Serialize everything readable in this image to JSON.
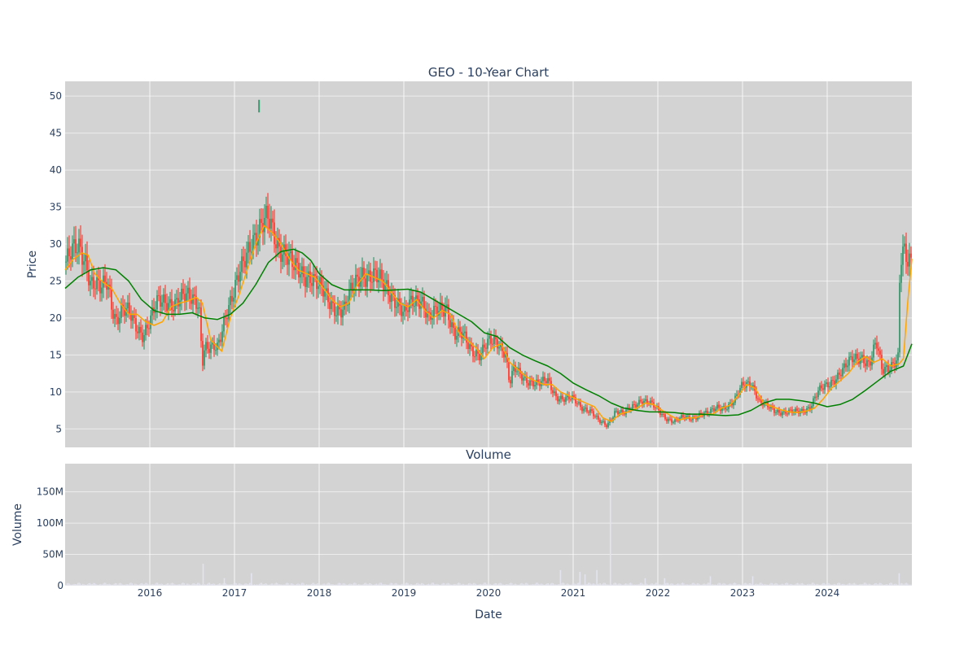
{
  "chart_data": {
    "type": "candlestick",
    "title": "GEO - 10-Year Chart",
    "price_panel": {
      "ylabel": "Price",
      "ylim": [
        2.5,
        52
      ],
      "yticks": [
        5,
        10,
        15,
        20,
        25,
        30,
        35,
        40,
        45,
        50
      ],
      "ytick_labels": [
        "5",
        "10",
        "15",
        "20",
        "25",
        "30",
        "35",
        "40",
        "45",
        "50"
      ],
      "background": "#d3d3d3",
      "grid": true,
      "up_color": "#3d9970",
      "down_color": "#ff4136",
      "series": [
        {
          "kind": "close_approx",
          "x": [
            2015.0,
            2015.08,
            2015.17,
            2015.25,
            2015.3,
            2015.35,
            2015.42,
            2015.5,
            2015.55,
            2015.6,
            2015.67,
            2015.75,
            2015.83,
            2015.92,
            2016.0,
            2016.1,
            2016.2,
            2016.3,
            2016.4,
            2016.5,
            2016.58,
            2016.62,
            2016.65,
            2016.7,
            2016.8,
            2016.9,
            2017.0,
            2017.1,
            2017.2,
            2017.3,
            2017.4,
            2017.5,
            2017.6,
            2017.7,
            2017.8,
            2017.9,
            2018.0,
            2018.1,
            2018.2,
            2018.3,
            2018.4,
            2018.5,
            2018.6,
            2018.7,
            2018.8,
            2018.9,
            2019.0,
            2019.1,
            2019.2,
            2019.3,
            2019.4,
            2019.5,
            2019.6,
            2019.7,
            2019.8,
            2019.9,
            2020.0,
            2020.1,
            2020.2,
            2020.25,
            2020.3,
            2020.4,
            2020.5,
            2020.6,
            2020.7,
            2020.8,
            2020.9,
            2021.0,
            2021.1,
            2021.2,
            2021.3,
            2021.4,
            2021.5,
            2021.6,
            2021.7,
            2021.8,
            2021.9,
            2022.0,
            2022.1,
            2022.2,
            2022.3,
            2022.4,
            2022.5,
            2022.6,
            2022.7,
            2022.8,
            2022.9,
            2023.0,
            2023.1,
            2023.2,
            2023.3,
            2023.4,
            2023.5,
            2023.6,
            2023.7,
            2023.8,
            2023.9,
            2024.0,
            2024.1,
            2024.2,
            2024.3,
            2024.4,
            2024.5,
            2024.58,
            2024.65,
            2024.7,
            2024.8,
            2024.84,
            2024.86,
            2024.9,
            2024.95,
            2025.0
          ],
          "close": [
            27.5,
            28.5,
            29.5,
            28.0,
            25.0,
            24.5,
            23.5,
            25.0,
            22.0,
            20.0,
            21.0,
            20.5,
            19.0,
            18.0,
            19.5,
            22.0,
            22.5,
            22.0,
            22.5,
            23.0,
            22.5,
            14.0,
            16.0,
            15.5,
            16.0,
            21.0,
            23.5,
            27.0,
            31.0,
            32.0,
            33.0,
            30.5,
            29.0,
            26.5,
            26.0,
            26.0,
            24.0,
            22.5,
            21.5,
            21.0,
            24.0,
            26.5,
            25.5,
            25.0,
            24.5,
            22.5,
            20.0,
            22.5,
            23.0,
            19.5,
            21.0,
            22.0,
            17.5,
            17.5,
            16.0,
            15.0,
            16.5,
            17.0,
            15.5,
            11.0,
            13.0,
            12.0,
            11.5,
            11.0,
            11.5,
            9.5,
            9.0,
            9.0,
            8.0,
            7.5,
            6.0,
            5.5,
            7.5,
            7.0,
            8.0,
            9.0,
            8.5,
            7.5,
            6.5,
            6.0,
            6.5,
            6.5,
            7.0,
            7.0,
            8.0,
            8.0,
            8.5,
            11.0,
            11.5,
            8.5,
            8.0,
            7.5,
            7.2,
            7.2,
            7.5,
            8.0,
            10.0,
            11.0,
            12.0,
            13.0,
            14.5,
            15.0,
            13.5,
            16.5,
            13.0,
            13.5,
            14.0,
            14.5,
            27.0,
            28.5,
            27.5,
            28.0
          ]
        },
        {
          "name": "",
          "kind": "short_ma",
          "color": "#ffa500",
          "x": [
            2015.0,
            2015.1,
            2015.2,
            2015.27,
            2015.35,
            2015.45,
            2015.55,
            2015.65,
            2015.75,
            2015.85,
            2015.95,
            2016.05,
            2016.15,
            2016.25,
            2016.35,
            2016.45,
            2016.55,
            2016.62,
            2016.72,
            2016.85,
            2016.95,
            2017.05,
            2017.15,
            2017.25,
            2017.35,
            2017.45,
            2017.55,
            2017.65,
            2017.75,
            2017.85,
            2017.95,
            2018.05,
            2018.15,
            2018.25,
            2018.35,
            2018.45,
            2018.55,
            2018.65,
            2018.75,
            2018.85,
            2018.95,
            2019.05,
            2019.15,
            2019.25,
            2019.35,
            2019.45,
            2019.55,
            2019.65,
            2019.75,
            2019.85,
            2019.95,
            2020.05,
            2020.15,
            2020.25,
            2020.35,
            2020.45,
            2020.55,
            2020.65,
            2020.75,
            2020.85,
            2020.95,
            2021.05,
            2021.15,
            2021.25,
            2021.35,
            2021.45,
            2021.55,
            2021.65,
            2021.75,
            2021.85,
            2021.95,
            2022.05,
            2022.15,
            2022.25,
            2022.35,
            2022.45,
            2022.55,
            2022.65,
            2022.75,
            2022.85,
            2022.95,
            2023.05,
            2023.15,
            2023.25,
            2023.35,
            2023.45,
            2023.55,
            2023.65,
            2023.75,
            2023.85,
            2023.95,
            2024.05,
            2024.15,
            2024.25,
            2024.35,
            2024.45,
            2024.55,
            2024.65,
            2024.75,
            2024.85,
            2024.9,
            2024.95,
            2025.0
          ],
          "y": [
            26.5,
            28.0,
            28.8,
            28.5,
            26.0,
            24.8,
            24.0,
            22.0,
            20.5,
            20.5,
            19.5,
            19.0,
            19.5,
            21.5,
            22.0,
            22.3,
            22.8,
            22.0,
            17.0,
            15.5,
            20.0,
            23.0,
            26.5,
            30.0,
            32.5,
            31.5,
            30.0,
            28.0,
            26.5,
            26.0,
            25.5,
            24.0,
            22.5,
            21.5,
            22.0,
            24.5,
            26.0,
            25.5,
            25.0,
            23.5,
            22.0,
            21.5,
            22.5,
            21.0,
            20.0,
            21.0,
            20.5,
            18.0,
            17.0,
            16.0,
            14.5,
            16.0,
            16.5,
            14.0,
            13.0,
            12.0,
            11.5,
            11.0,
            11.0,
            10.0,
            9.5,
            9.0,
            8.5,
            8.0,
            6.5,
            6.0,
            7.0,
            7.3,
            7.8,
            8.5,
            8.3,
            7.5,
            6.8,
            6.2,
            6.5,
            6.5,
            7.0,
            7.0,
            7.8,
            8.2,
            9.5,
            11.0,
            10.5,
            8.5,
            8.0,
            7.6,
            7.3,
            7.2,
            7.4,
            7.8,
            9.0,
            10.5,
            11.5,
            12.5,
            14.0,
            14.8,
            14.0,
            14.5,
            13.5,
            13.8,
            14.5,
            22.0,
            28.0
          ]
        },
        {
          "name": "",
          "kind": "long_ma",
          "color": "#008000",
          "x": [
            2015.0,
            2015.15,
            2015.3,
            2015.45,
            2015.6,
            2015.75,
            2015.9,
            2016.05,
            2016.2,
            2016.35,
            2016.5,
            2016.65,
            2016.8,
            2016.95,
            2017.1,
            2017.25,
            2017.4,
            2017.55,
            2017.7,
            2017.8,
            2017.9,
            2018.0,
            2018.15,
            2018.3,
            2018.45,
            2018.6,
            2018.75,
            2018.9,
            2019.05,
            2019.2,
            2019.35,
            2019.5,
            2019.65,
            2019.8,
            2019.95,
            2020.1,
            2020.25,
            2020.4,
            2020.55,
            2020.7,
            2020.85,
            2021.0,
            2021.15,
            2021.3,
            2021.45,
            2021.6,
            2021.75,
            2021.9,
            2022.05,
            2022.2,
            2022.35,
            2022.5,
            2022.65,
            2022.8,
            2022.95,
            2023.1,
            2023.25,
            2023.4,
            2023.55,
            2023.7,
            2023.85,
            2024.0,
            2024.15,
            2024.3,
            2024.45,
            2024.6,
            2024.75,
            2024.9,
            2025.0
          ],
          "y": [
            24.0,
            25.5,
            26.5,
            26.8,
            26.5,
            25.0,
            22.5,
            21.0,
            20.5,
            20.5,
            20.7,
            20.0,
            19.8,
            20.5,
            22.0,
            24.5,
            27.5,
            29.0,
            29.3,
            28.8,
            27.8,
            26.0,
            24.5,
            23.8,
            23.8,
            23.8,
            23.7,
            23.8,
            23.9,
            23.5,
            22.5,
            21.5,
            20.5,
            19.5,
            18.0,
            17.5,
            16.0,
            15.0,
            14.2,
            13.5,
            12.5,
            11.2,
            10.3,
            9.5,
            8.5,
            7.8,
            7.5,
            7.3,
            7.3,
            7.2,
            7.0,
            7.0,
            6.9,
            6.8,
            6.9,
            7.5,
            8.5,
            9.0,
            9.0,
            8.8,
            8.5,
            8.0,
            8.3,
            9.0,
            10.2,
            11.5,
            12.8,
            13.5,
            16.5
          ]
        }
      ],
      "outlier": {
        "x": 2017.29,
        "low": 47.8,
        "high": 49.5
      }
    },
    "volume_panel": {
      "subtitle": "Volume",
      "ylabel": "Volume",
      "ylim": [
        0,
        195000000
      ],
      "yticks": [
        0,
        50000000,
        100000000,
        150000000
      ],
      "ytick_labels": [
        "0",
        "50M",
        "100M",
        "150M"
      ],
      "bar_color": "#e4e4ee",
      "spikes": [
        {
          "x": 2016.63,
          "v": 35000000
        },
        {
          "x": 2016.88,
          "v": 12000000
        },
        {
          "x": 2017.2,
          "v": 20000000
        },
        {
          "x": 2020.85,
          "v": 25000000
        },
        {
          "x": 2021.08,
          "v": 22000000
        },
        {
          "x": 2021.14,
          "v": 18000000
        },
        {
          "x": 2021.28,
          "v": 25000000
        },
        {
          "x": 2021.44,
          "v": 188000000
        },
        {
          "x": 2021.85,
          "v": 12000000
        },
        {
          "x": 2022.08,
          "v": 12000000
        },
        {
          "x": 2022.62,
          "v": 15000000
        },
        {
          "x": 2023.12,
          "v": 15000000
        },
        {
          "x": 2024.85,
          "v": 20000000
        }
      ]
    },
    "xaxis": {
      "label": "Date",
      "xlim": [
        2015.0,
        2025.0
      ],
      "ticks": [
        2016,
        2017,
        2018,
        2019,
        2020,
        2021,
        2022,
        2023,
        2024
      ],
      "tick_labels": [
        "2016",
        "2017",
        "2018",
        "2019",
        "2020",
        "2021",
        "2022",
        "2023",
        "2024"
      ]
    }
  }
}
